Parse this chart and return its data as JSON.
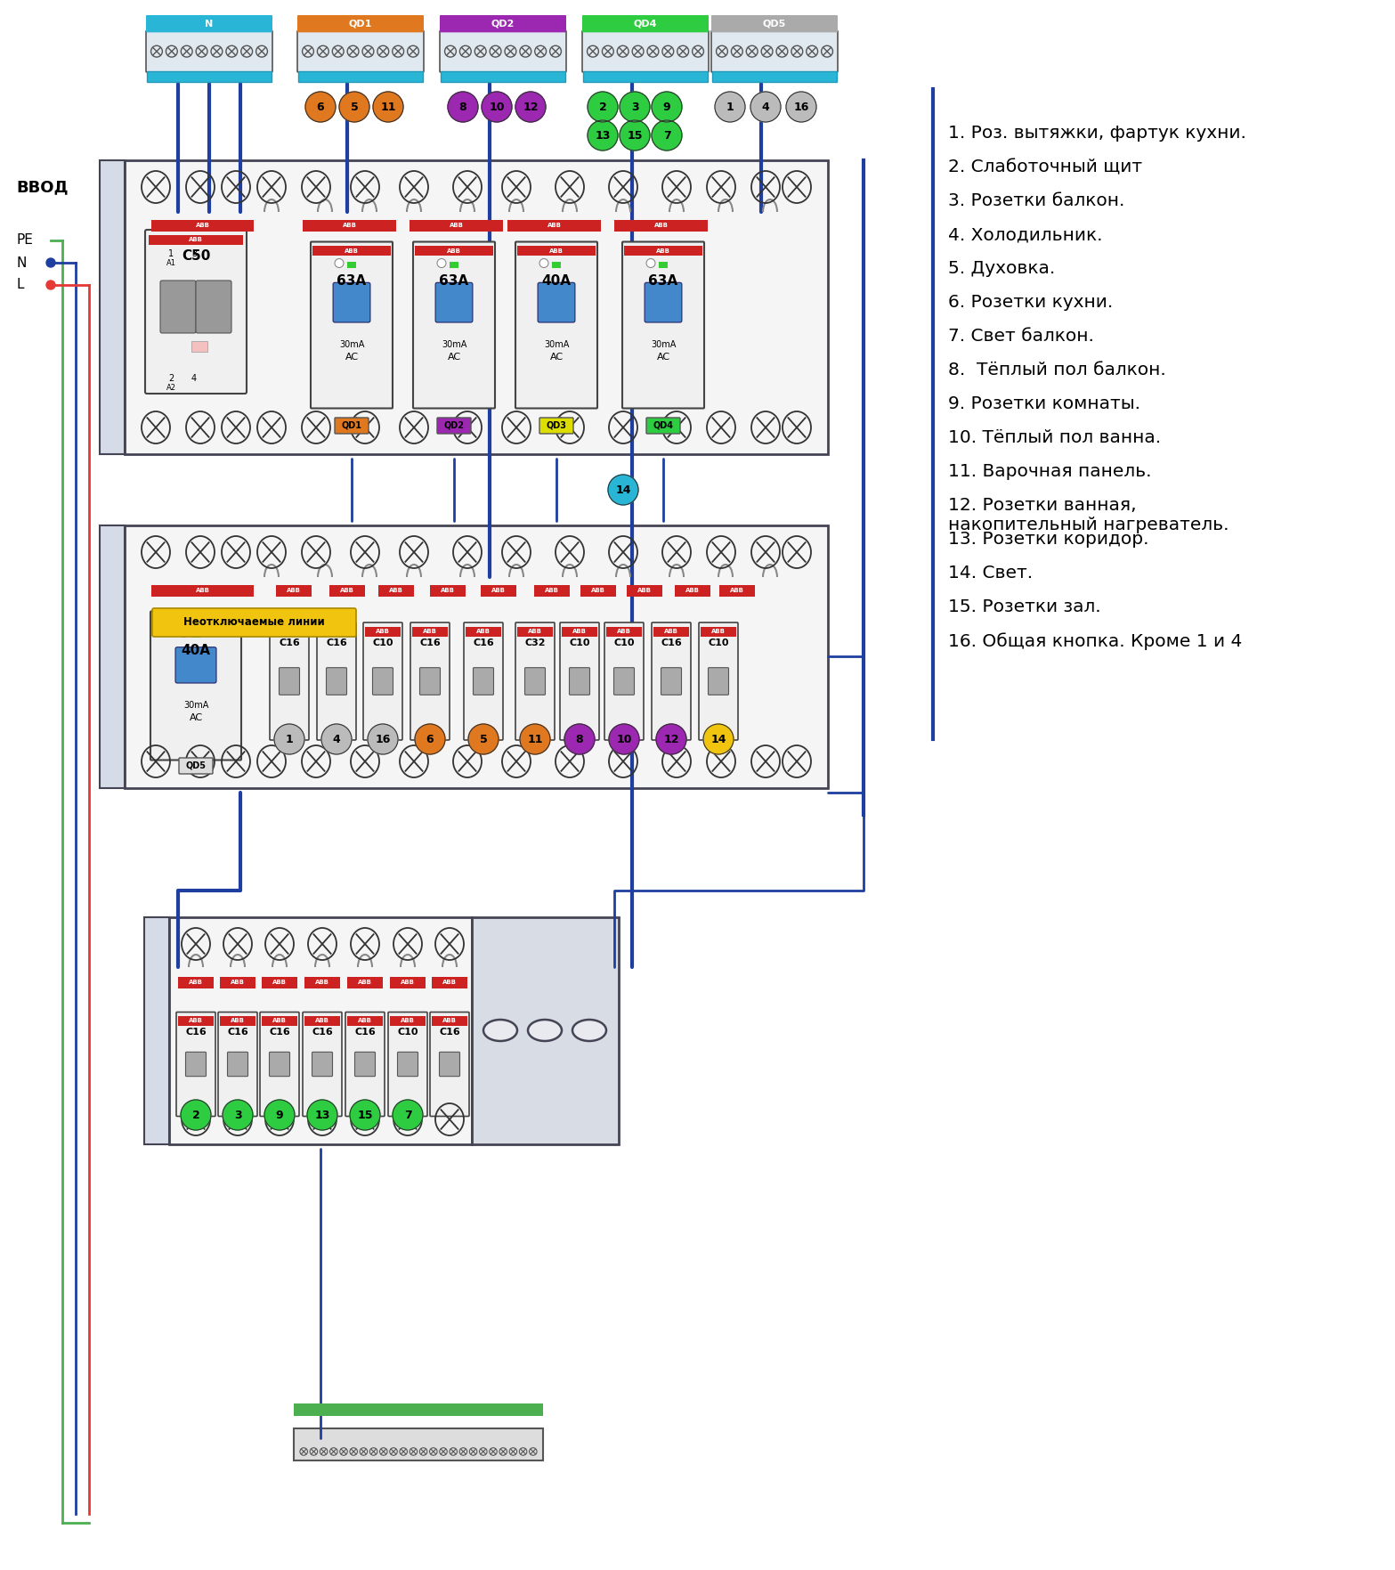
{
  "legend": [
    "1. Роз. вытяжки, фартук кухни.",
    "2. Слаботочный щит",
    "3. Розетки балкон.",
    "4. Холодильник.",
    "5. Духовка.",
    "6. Розетки кухни.",
    "7. Свет балкон.",
    "8.  Тёплый пол балкон.",
    "9. Розетки комнаты.",
    "10. Тёплый пол ванна.",
    "11. Варочная панель.",
    "12. Розетки ванная,\nнакопительный нагреватель.",
    "13. Розетки коридор.",
    "14. Свет.",
    "15. Розетки зал.",
    "16. Общая кнопка. Кроме 1 и 4"
  ],
  "bg_color": "#ffffff",
  "wire_blue": "#1e3fa0",
  "wire_green": "#4caf50",
  "wire_red": "#e53935",
  "wire_gray": "#888888",
  "bus_N": "#29b6d6",
  "bus_QD1": "#e07820",
  "bus_QD2": "#9c27b0",
  "bus_QD4": "#2ecc40",
  "bus_QD5": "#aaaaaa",
  "circ_orange": "#e07820",
  "circ_purple": "#9c27b0",
  "circ_green": "#2ecc40",
  "circ_gray": "#bbbbbb",
  "circ_blue": "#29b6d6",
  "circ_yellow": "#f1c40f",
  "red_bar": "#cc2222",
  "handle_blue": "#4488cc",
  "handle_gray": "#888888",
  "panel_fill": "#f5f5f5",
  "panel_edge": "#444455",
  "label_fs": 14.5
}
